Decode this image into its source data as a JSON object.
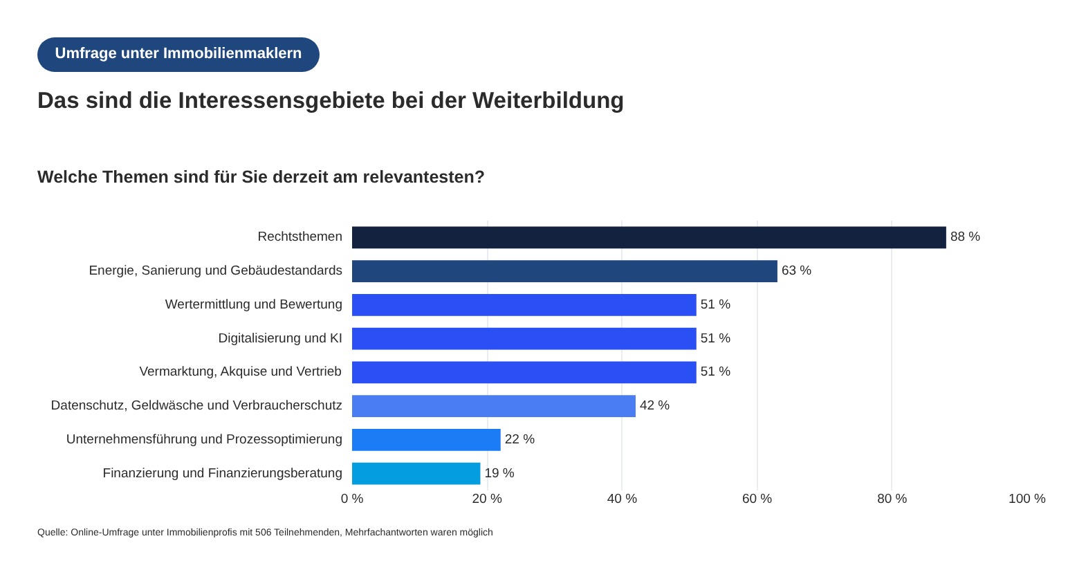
{
  "chart_data": {
    "type": "bar",
    "orientation": "horizontal",
    "title": "Das sind die Interessensgebiete bei der Weiterbildung",
    "subtitle": "Welche Themen sind für Sie derzeit am relevantesten?",
    "categories": [
      "Rechtsthemen",
      "Energie, Sanierung und Gebäudestandards",
      "Wertermittlung und Bewertung",
      "Digitalisierung und KI",
      "Vermarktung, Akquise und Vertrieb",
      "Datenschutz, Geldwäsche und Verbraucherschutz",
      "Unternehmensführung und Prozessoptimierung",
      "Finanzierung und Finanzierungsberatung"
    ],
    "values": [
      88,
      63,
      51,
      51,
      51,
      42,
      22,
      19
    ],
    "colors": [
      "#13233f",
      "#1f467d",
      "#2a50f5",
      "#2a50f5",
      "#2a50f5",
      "#4a7cf2",
      "#1b7cf5",
      "#049de0"
    ],
    "value_labels": [
      "88 %",
      "63 %",
      "51 %",
      "51 %",
      "51 %",
      "42 %",
      "22 %",
      "19 %"
    ],
    "xlim": [
      0,
      100
    ],
    "xticks": [
      {
        "value": 0,
        "label": "0 %"
      },
      {
        "value": 20,
        "label": "20 %"
      },
      {
        "value": 40,
        "label": "40 %"
      },
      {
        "value": 60,
        "label": "60 %"
      },
      {
        "value": 80,
        "label": "80 %"
      },
      {
        "value": 100,
        "label": "100 %"
      }
    ],
    "grid": "x",
    "annotations": [
      "Umfrage unter Immobilienmaklern",
      "Quelle: Online-Umfrage unter Immobilienprofis mit 506 Teilnehmenden, Mehrfachantworten waren möglich"
    ]
  }
}
